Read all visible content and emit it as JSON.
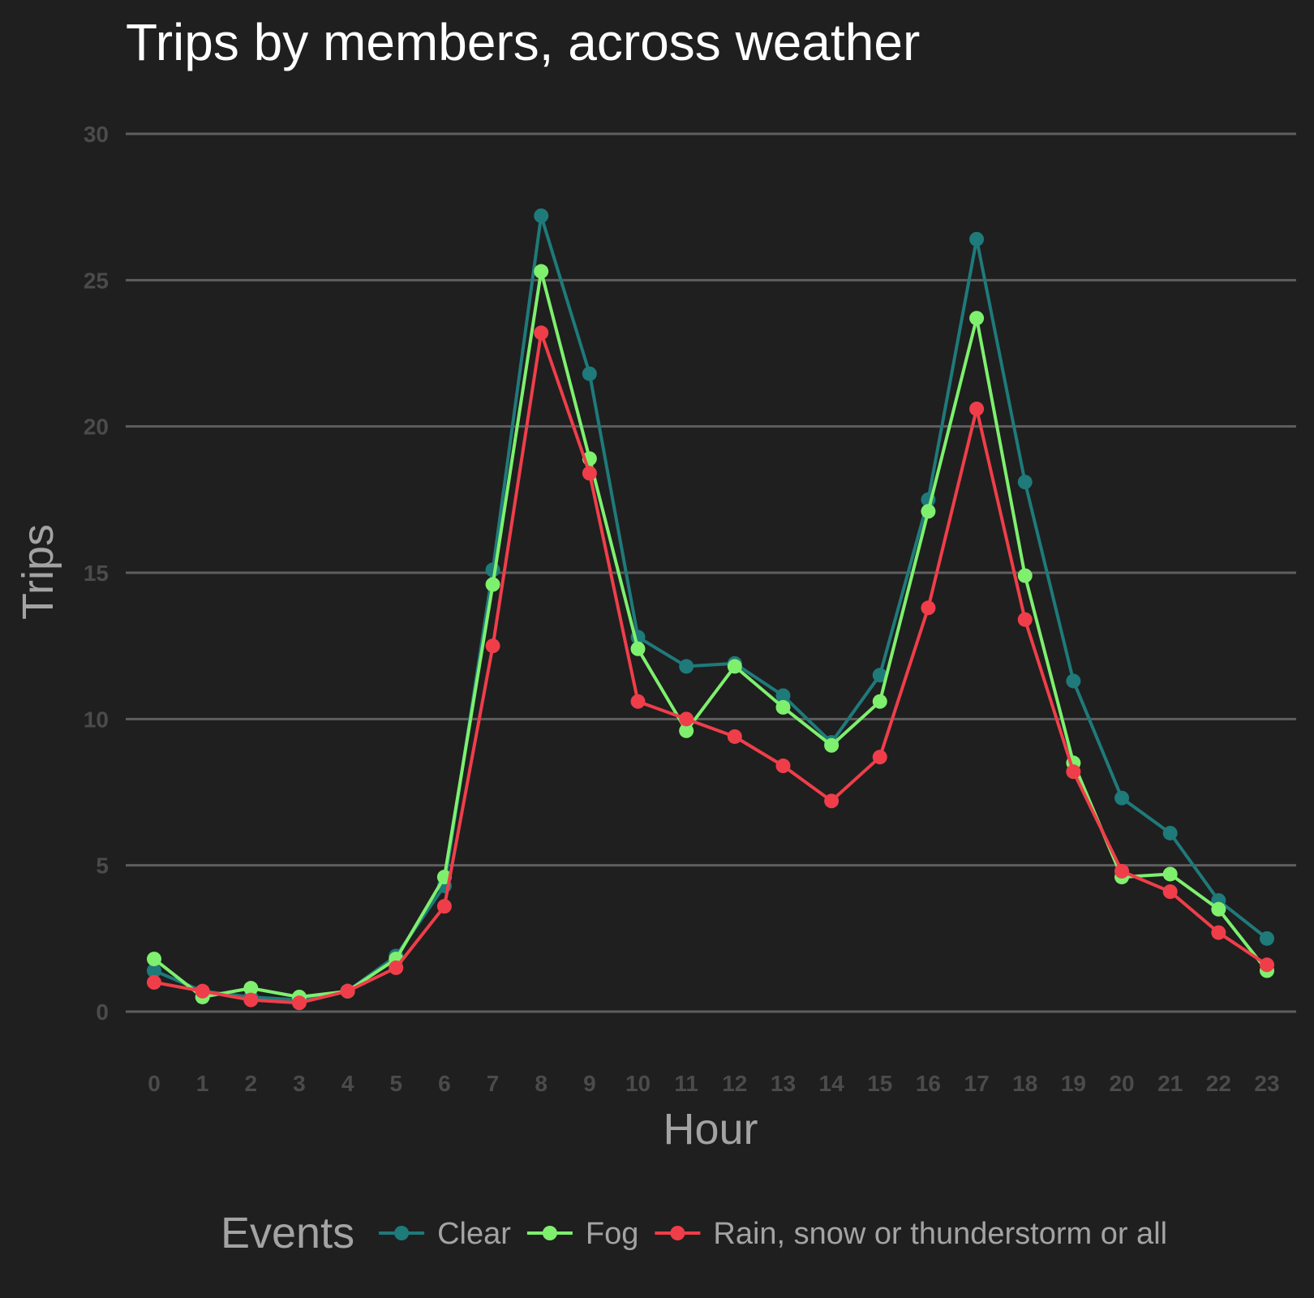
{
  "chart_data": {
    "type": "line",
    "title": "Trips by members, across weather",
    "xlabel": "Hour",
    "ylabel": "Trips",
    "x": [
      0,
      1,
      2,
      3,
      4,
      5,
      6,
      7,
      8,
      9,
      10,
      11,
      12,
      13,
      14,
      15,
      16,
      17,
      18,
      19,
      20,
      21,
      22,
      23
    ],
    "ylim": [
      0,
      30
    ],
    "yticks": [
      0,
      5,
      10,
      15,
      20,
      25,
      30
    ],
    "grid": "horizontal",
    "legend": {
      "title": "Events",
      "placement": "bottom"
    },
    "series": [
      {
        "name": "Clear",
        "color": "#1f7a7a",
        "values": [
          1.4,
          0.7,
          0.5,
          0.4,
          0.7,
          1.9,
          4.3,
          15.1,
          27.2,
          21.8,
          12.8,
          11.8,
          11.9,
          10.8,
          9.2,
          11.5,
          17.5,
          26.4,
          18.1,
          11.3,
          7.3,
          6.1,
          3.8,
          2.5
        ]
      },
      {
        "name": "Fog",
        "color": "#7ef06e",
        "values": [
          1.8,
          0.5,
          0.8,
          0.5,
          0.7,
          1.8,
          4.6,
          14.6,
          25.3,
          18.9,
          12.4,
          9.6,
          11.8,
          10.4,
          9.1,
          10.6,
          17.1,
          23.7,
          14.9,
          8.5,
          4.6,
          4.7,
          3.5,
          1.4
        ]
      },
      {
        "name": "Rain, snow or thunderstorm or all",
        "color": "#ef3e4a",
        "values": [
          1.0,
          0.7,
          0.4,
          0.3,
          0.7,
          1.5,
          3.6,
          12.5,
          23.2,
          18.4,
          10.6,
          10.0,
          9.4,
          8.4,
          7.2,
          8.7,
          13.8,
          20.6,
          13.4,
          8.2,
          4.8,
          4.1,
          2.7,
          1.6
        ]
      }
    ]
  }
}
